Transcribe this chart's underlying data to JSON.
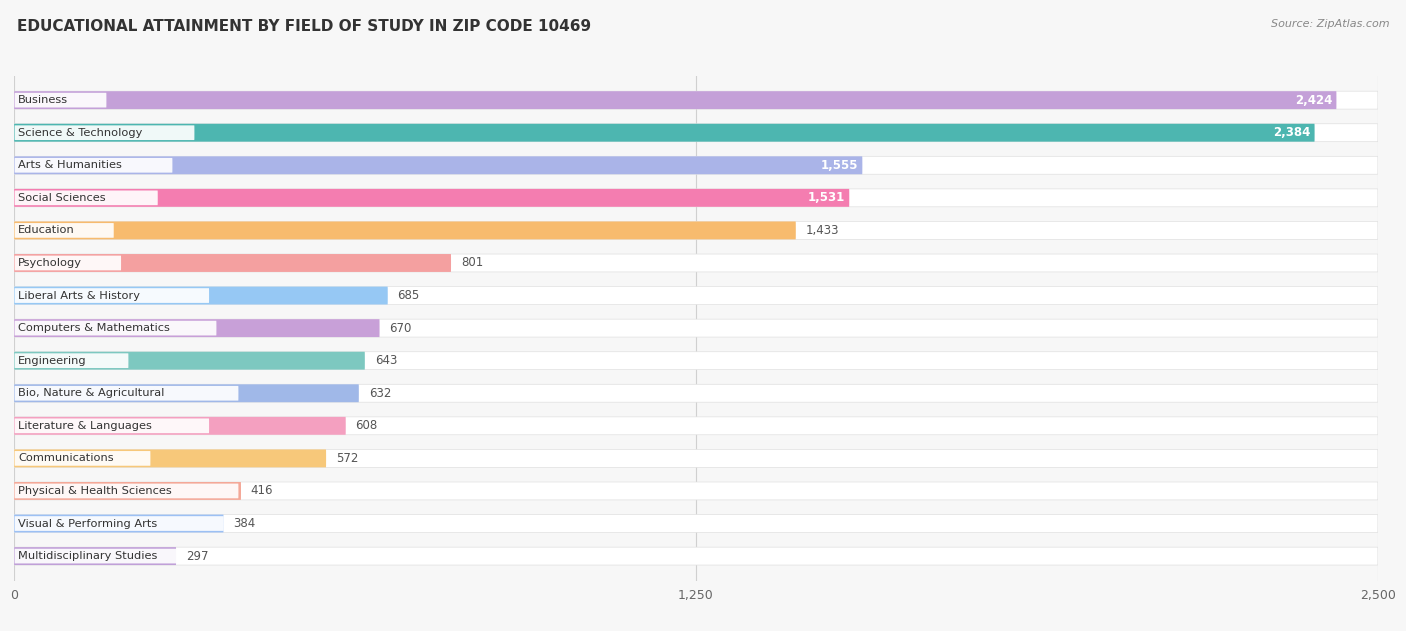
{
  "title": "EDUCATIONAL ATTAINMENT BY FIELD OF STUDY IN ZIP CODE 10469",
  "source": "Source: ZipAtlas.com",
  "categories": [
    "Business",
    "Science & Technology",
    "Arts & Humanities",
    "Social Sciences",
    "Education",
    "Psychology",
    "Liberal Arts & History",
    "Computers & Mathematics",
    "Engineering",
    "Bio, Nature & Agricultural",
    "Literature & Languages",
    "Communications",
    "Physical & Health Sciences",
    "Visual & Performing Arts",
    "Multidisciplinary Studies"
  ],
  "values": [
    2424,
    2384,
    1555,
    1531,
    1433,
    801,
    685,
    670,
    643,
    632,
    608,
    572,
    416,
    384,
    297
  ],
  "bar_colors": [
    "#c4a0d8",
    "#4db6b0",
    "#aab4e8",
    "#f47db0",
    "#f7bb6e",
    "#f4a0a0",
    "#96c8f4",
    "#c8a0d8",
    "#7dc8c0",
    "#a0b8e8",
    "#f4a0c0",
    "#f7c87a",
    "#f4a898",
    "#9cc0f4",
    "#c0a0d8"
  ],
  "xlim": [
    0,
    2500
  ],
  "background_color": "#f7f7f7",
  "bar_bg_color": "#ffffff",
  "title_fontsize": 11,
  "source_fontsize": 8,
  "tick_fontsize": 9,
  "value_label_inside": [
    true,
    true,
    true,
    true,
    false,
    false,
    false,
    false,
    false,
    false,
    false,
    false,
    false,
    false,
    false
  ],
  "x_ticks": [
    0,
    1250,
    2500
  ],
  "x_tick_labels": [
    "0",
    "1,250",
    "2,500"
  ]
}
